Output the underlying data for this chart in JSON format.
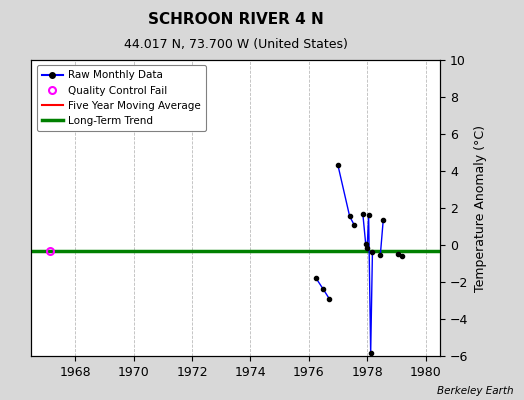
{
  "title": "SCHROON RIVER 4 N",
  "subtitle": "44.017 N, 73.700 W (United States)",
  "ylabel": "Temperature Anomaly (°C)",
  "attribution": "Berkeley Earth",
  "xlim": [
    1966.5,
    1980.5
  ],
  "ylim": [
    -6,
    10
  ],
  "yticks": [
    -6,
    -4,
    -2,
    0,
    2,
    4,
    6,
    8,
    10
  ],
  "xticks": [
    1968,
    1970,
    1972,
    1974,
    1976,
    1978,
    1980
  ],
  "bg_color": "#d8d8d8",
  "plot_bg_color": "#ffffff",
  "grid_color": "#bbbbbb",
  "long_term_trend_y": -0.3,
  "qc_fail_x": 1967.15,
  "qc_fail_y": -0.3,
  "segments": [
    [
      [
        1976.25,
        -1.8
      ],
      [
        1976.5,
        -2.4
      ],
      [
        1976.7,
        -2.9
      ]
    ],
    [
      [
        1977.0,
        4.3
      ],
      [
        1977.4,
        1.55
      ],
      [
        1977.55,
        1.1
      ]
    ],
    [
      [
        1977.85,
        1.7
      ],
      [
        1977.95,
        0.05
      ],
      [
        1978.0,
        -0.15
      ],
      [
        1978.05,
        1.6
      ],
      [
        1978.12,
        -5.85
      ],
      [
        1978.18,
        -0.4
      ]
    ],
    [
      [
        1978.45,
        -0.55
      ],
      [
        1978.55,
        1.35
      ]
    ]
  ],
  "lone_points": [
    [
      1979.05,
      -0.5
    ],
    [
      1979.2,
      -0.6
    ]
  ]
}
